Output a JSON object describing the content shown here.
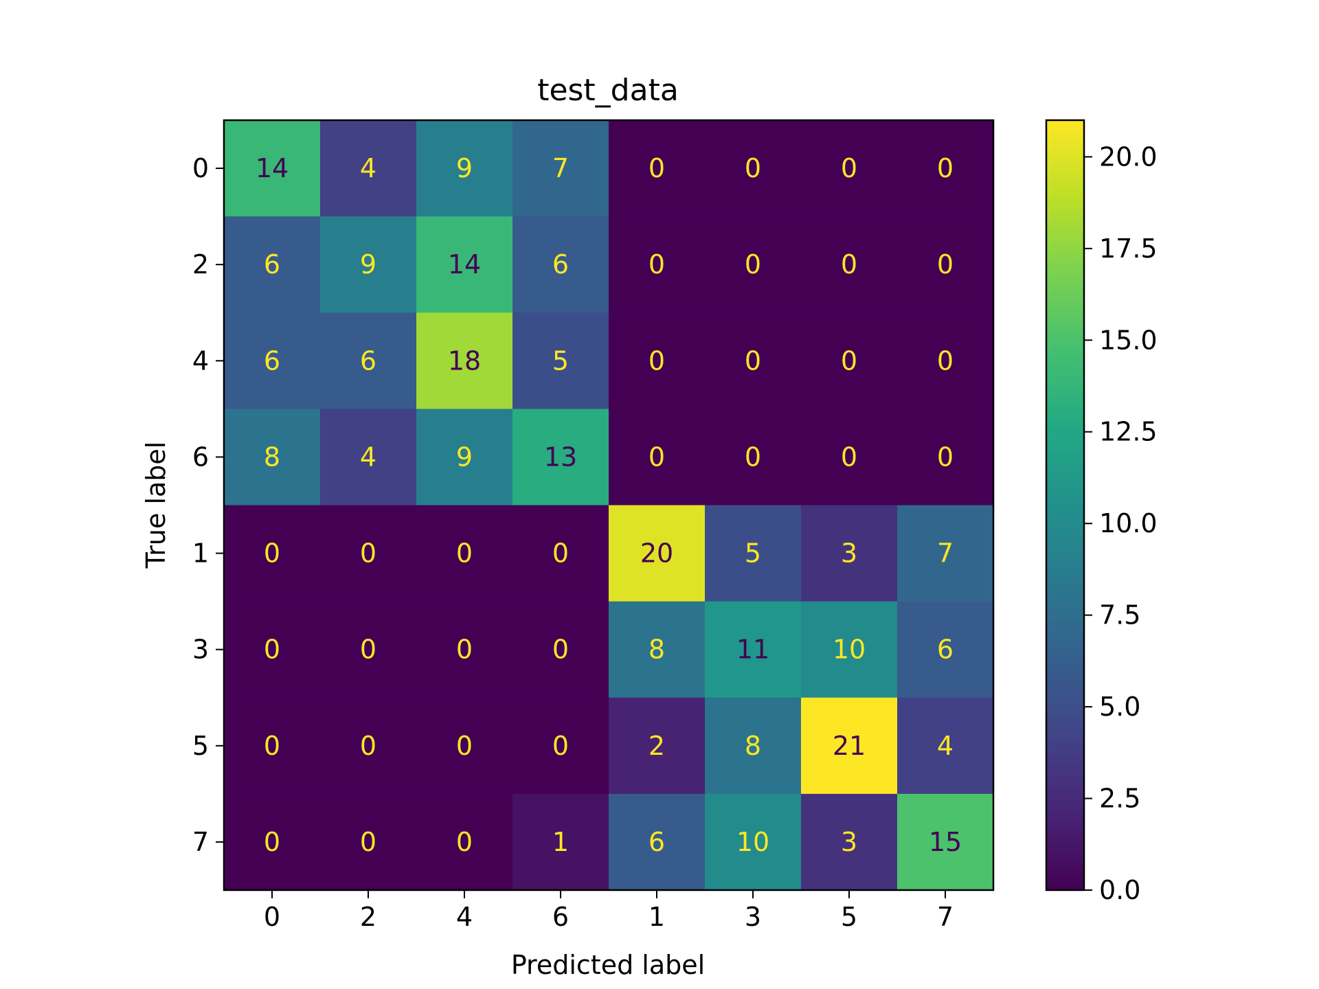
{
  "chart_data": {
    "type": "heatmap",
    "title": "test_data",
    "xlabel": "Predicted label",
    "ylabel": "True label",
    "x_categories": [
      "0",
      "2",
      "4",
      "6",
      "1",
      "3",
      "5",
      "7"
    ],
    "y_categories": [
      "0",
      "2",
      "4",
      "6",
      "1",
      "3",
      "5",
      "7"
    ],
    "values": [
      [
        14,
        4,
        9,
        7,
        0,
        0,
        0,
        0
      ],
      [
        6,
        9,
        14,
        6,
        0,
        0,
        0,
        0
      ],
      [
        6,
        6,
        18,
        5,
        0,
        0,
        0,
        0
      ],
      [
        8,
        4,
        9,
        13,
        0,
        0,
        0,
        0
      ],
      [
        0,
        0,
        0,
        0,
        20,
        5,
        3,
        7
      ],
      [
        0,
        0,
        0,
        0,
        8,
        11,
        10,
        6
      ],
      [
        0,
        0,
        0,
        0,
        2,
        8,
        21,
        4
      ],
      [
        0,
        0,
        0,
        1,
        6,
        10,
        3,
        15
      ]
    ],
    "colormap": "viridis",
    "color_range": [
      0,
      21
    ],
    "colorbar_ticks": [
      "0.0",
      "2.5",
      "5.0",
      "7.5",
      "10.0",
      "12.5",
      "15.0",
      "17.5",
      "20.0"
    ],
    "grid": false,
    "colorbar": "right",
    "text_colors": {
      "light": "#fde725",
      "dark": "#440154"
    }
  }
}
